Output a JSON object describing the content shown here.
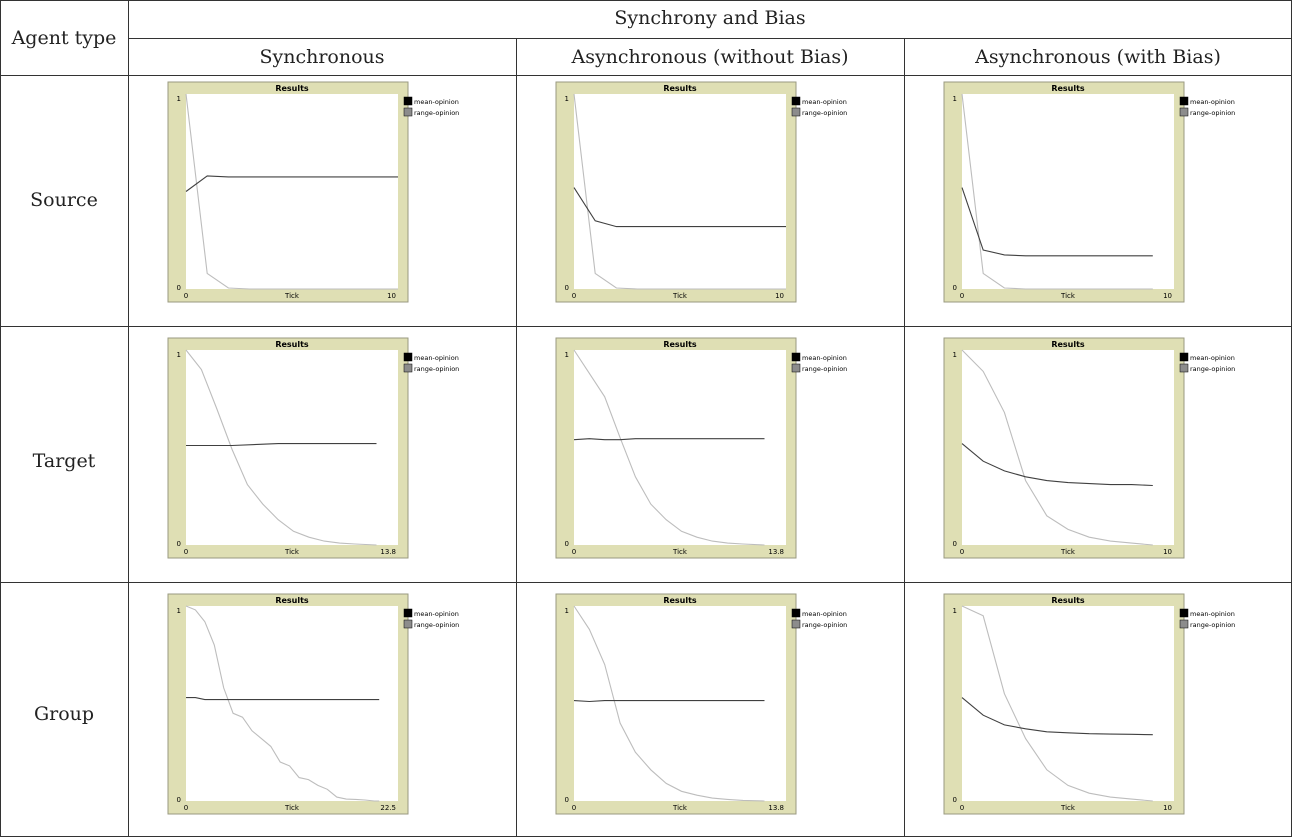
{
  "table": {
    "corner_label": "Agent type",
    "group_header": "Synchrony and Bias",
    "columns": [
      "Synchronous",
      "Asynchronous (without Bias)",
      "Asynchronous (with Bias)"
    ],
    "rows": [
      "Source",
      "Target",
      "Group"
    ]
  },
  "colors": {
    "plot_bg": "#dfdfb4",
    "plot_area": "#ffffff",
    "mean_opinion": "#000000",
    "range_opinion": "#8c8c8c",
    "mean_line": "#404040",
    "range_line": "#bdbdbd"
  },
  "chart_data": [
    {
      "type": "line",
      "title": "Results",
      "xlabel": "Tick",
      "ylabel": "",
      "xlim": [
        0,
        10
      ],
      "ylim": [
        0,
        1
      ],
      "x_tick_labels": [
        "0",
        "10"
      ],
      "y_tick_labels": [
        "0",
        "1"
      ],
      "legend_position": "right",
      "series": [
        {
          "name": "mean-opinion",
          "x": [
            0,
            1,
            2,
            10
          ],
          "y": [
            0.5,
            0.58,
            0.575,
            0.575
          ]
        },
        {
          "name": "range-opinion",
          "x": [
            0,
            1,
            2,
            3,
            10
          ],
          "y": [
            1,
            0.08,
            0.005,
            0,
            0
          ]
        }
      ]
    },
    {
      "type": "line",
      "title": "Results",
      "xlabel": "Tick",
      "ylabel": "",
      "xlim": [
        0,
        10
      ],
      "ylim": [
        0,
        1
      ],
      "x_tick_labels": [
        "0",
        "10"
      ],
      "y_tick_labels": [
        "0",
        "1"
      ],
      "legend_position": "right",
      "series": [
        {
          "name": "mean-opinion",
          "x": [
            0,
            1,
            2,
            10
          ],
          "y": [
            0.52,
            0.35,
            0.32,
            0.32
          ]
        },
        {
          "name": "range-opinion",
          "x": [
            0,
            1,
            2,
            3,
            10
          ],
          "y": [
            1,
            0.08,
            0.005,
            0,
            0
          ]
        }
      ]
    },
    {
      "type": "line",
      "title": "Results",
      "xlabel": "Tick",
      "ylabel": "",
      "xlim": [
        0,
        10
      ],
      "ylim": [
        0,
        1
      ],
      "x_tick_labels": [
        "0",
        "10"
      ],
      "y_tick_labels": [
        "0",
        "1"
      ],
      "legend_position": "right",
      "series": [
        {
          "name": "mean-opinion",
          "x": [
            0,
            1,
            2,
            3,
            9
          ],
          "y": [
            0.52,
            0.2,
            0.175,
            0.17,
            0.17
          ]
        },
        {
          "name": "range-opinion",
          "x": [
            0,
            1,
            2,
            3,
            9
          ],
          "y": [
            1,
            0.08,
            0.005,
            0,
            0
          ]
        }
      ]
    },
    {
      "type": "line",
      "title": "Results",
      "xlabel": "Tick",
      "ylabel": "",
      "xlim": [
        0,
        13.8
      ],
      "ylim": [
        0,
        1
      ],
      "x_tick_labels": [
        "0",
        "13.8"
      ],
      "y_tick_labels": [
        "0",
        "1"
      ],
      "legend_position": "right",
      "series": [
        {
          "name": "mean-opinion",
          "x": [
            0,
            3,
            6,
            12.4
          ],
          "y": [
            0.51,
            0.51,
            0.52,
            0.52
          ]
        },
        {
          "name": "range-opinion",
          "x": [
            0,
            1,
            2,
            3,
            4,
            5,
            6,
            7,
            8,
            9,
            10,
            11,
            12.4
          ],
          "y": [
            1,
            0.9,
            0.7,
            0.49,
            0.31,
            0.21,
            0.13,
            0.07,
            0.04,
            0.02,
            0.01,
            0.005,
            0
          ]
        }
      ]
    },
    {
      "type": "line",
      "title": "Results",
      "xlabel": "Tick",
      "ylabel": "",
      "xlim": [
        0,
        13.8
      ],
      "ylim": [
        0,
        1
      ],
      "x_tick_labels": [
        "0",
        "13.8"
      ],
      "y_tick_labels": [
        "0",
        "1"
      ],
      "legend_position": "right",
      "series": [
        {
          "name": "mean-opinion",
          "x": [
            0,
            1,
            2,
            3,
            4,
            5,
            12.4
          ],
          "y": [
            0.54,
            0.545,
            0.54,
            0.54,
            0.545,
            0.545,
            0.545
          ]
        },
        {
          "name": "range-opinion",
          "x": [
            0,
            1,
            2,
            3,
            4,
            5,
            6,
            7,
            8,
            9,
            10,
            11,
            12.4
          ],
          "y": [
            1,
            0.88,
            0.76,
            0.55,
            0.35,
            0.21,
            0.13,
            0.07,
            0.04,
            0.02,
            0.01,
            0.005,
            0
          ]
        }
      ]
    },
    {
      "type": "line",
      "title": "Results",
      "xlabel": "Tick",
      "ylabel": "",
      "xlim": [
        0,
        10
      ],
      "ylim": [
        0,
        1
      ],
      "x_tick_labels": [
        "0",
        "10"
      ],
      "y_tick_labels": [
        "0",
        "1"
      ],
      "legend_position": "right",
      "series": [
        {
          "name": "mean-opinion",
          "x": [
            0,
            1,
            2,
            3,
            4,
            5,
            6,
            7,
            8,
            9
          ],
          "y": [
            0.52,
            0.43,
            0.38,
            0.35,
            0.33,
            0.32,
            0.315,
            0.31,
            0.31,
            0.305
          ]
        },
        {
          "name": "range-opinion",
          "x": [
            0,
            1,
            2,
            3,
            4,
            5,
            6,
            7,
            8,
            9
          ],
          "y": [
            1,
            0.89,
            0.68,
            0.33,
            0.15,
            0.08,
            0.04,
            0.02,
            0.01,
            0
          ]
        }
      ]
    },
    {
      "type": "line",
      "title": "Results",
      "xlabel": "Tick",
      "ylabel": "",
      "xlim": [
        0,
        22.5
      ],
      "ylim": [
        0,
        1
      ],
      "x_tick_labels": [
        "0",
        "22.5"
      ],
      "y_tick_labels": [
        "0",
        "1"
      ],
      "legend_position": "right",
      "series": [
        {
          "name": "mean-opinion",
          "x": [
            0,
            1,
            2,
            20.5
          ],
          "y": [
            0.53,
            0.53,
            0.52,
            0.52
          ]
        },
        {
          "name": "range-opinion",
          "x": [
            0,
            1,
            2,
            3,
            4,
            5,
            6,
            7,
            8,
            9,
            10,
            11,
            12,
            13,
            14,
            15,
            16,
            17,
            18,
            19,
            20,
            20.5
          ],
          "y": [
            1,
            0.98,
            0.92,
            0.8,
            0.58,
            0.45,
            0.43,
            0.36,
            0.32,
            0.28,
            0.2,
            0.18,
            0.12,
            0.11,
            0.08,
            0.06,
            0.02,
            0.01,
            0.008,
            0.005,
            0,
            0
          ]
        }
      ]
    },
    {
      "type": "line",
      "title": "Results",
      "xlabel": "Tick",
      "ylabel": "",
      "xlim": [
        0,
        13.8
      ],
      "ylim": [
        0,
        1
      ],
      "x_tick_labels": [
        "0",
        "13.8"
      ],
      "y_tick_labels": [
        "0",
        "1"
      ],
      "legend_position": "right",
      "series": [
        {
          "name": "mean-opinion",
          "x": [
            0,
            1,
            2,
            3,
            4,
            12.4
          ],
          "y": [
            0.515,
            0.51,
            0.515,
            0.515,
            0.515,
            0.515
          ]
        },
        {
          "name": "range-opinion",
          "x": [
            0,
            1,
            2,
            3,
            4,
            5,
            6,
            7,
            8,
            9,
            10,
            11,
            12.4
          ],
          "y": [
            1,
            0.88,
            0.7,
            0.4,
            0.25,
            0.16,
            0.09,
            0.05,
            0.03,
            0.015,
            0.008,
            0.003,
            0
          ]
        }
      ]
    },
    {
      "type": "line",
      "title": "Results",
      "xlabel": "Tick",
      "ylabel": "",
      "xlim": [
        0,
        10
      ],
      "ylim": [
        0,
        1
      ],
      "x_tick_labels": [
        "0",
        "10"
      ],
      "y_tick_labels": [
        "0",
        "1"
      ],
      "legend_position": "right",
      "series": [
        {
          "name": "mean-opinion",
          "x": [
            0,
            1,
            2,
            3,
            4,
            5,
            6,
            7,
            8,
            9
          ],
          "y": [
            0.53,
            0.44,
            0.39,
            0.37,
            0.355,
            0.35,
            0.345,
            0.343,
            0.342,
            0.34
          ]
        },
        {
          "name": "range-opinion",
          "x": [
            0,
            1,
            2,
            3,
            4,
            5,
            6,
            7,
            8,
            9
          ],
          "y": [
            1,
            0.95,
            0.55,
            0.32,
            0.16,
            0.08,
            0.04,
            0.02,
            0.01,
            0
          ]
        }
      ]
    }
  ]
}
